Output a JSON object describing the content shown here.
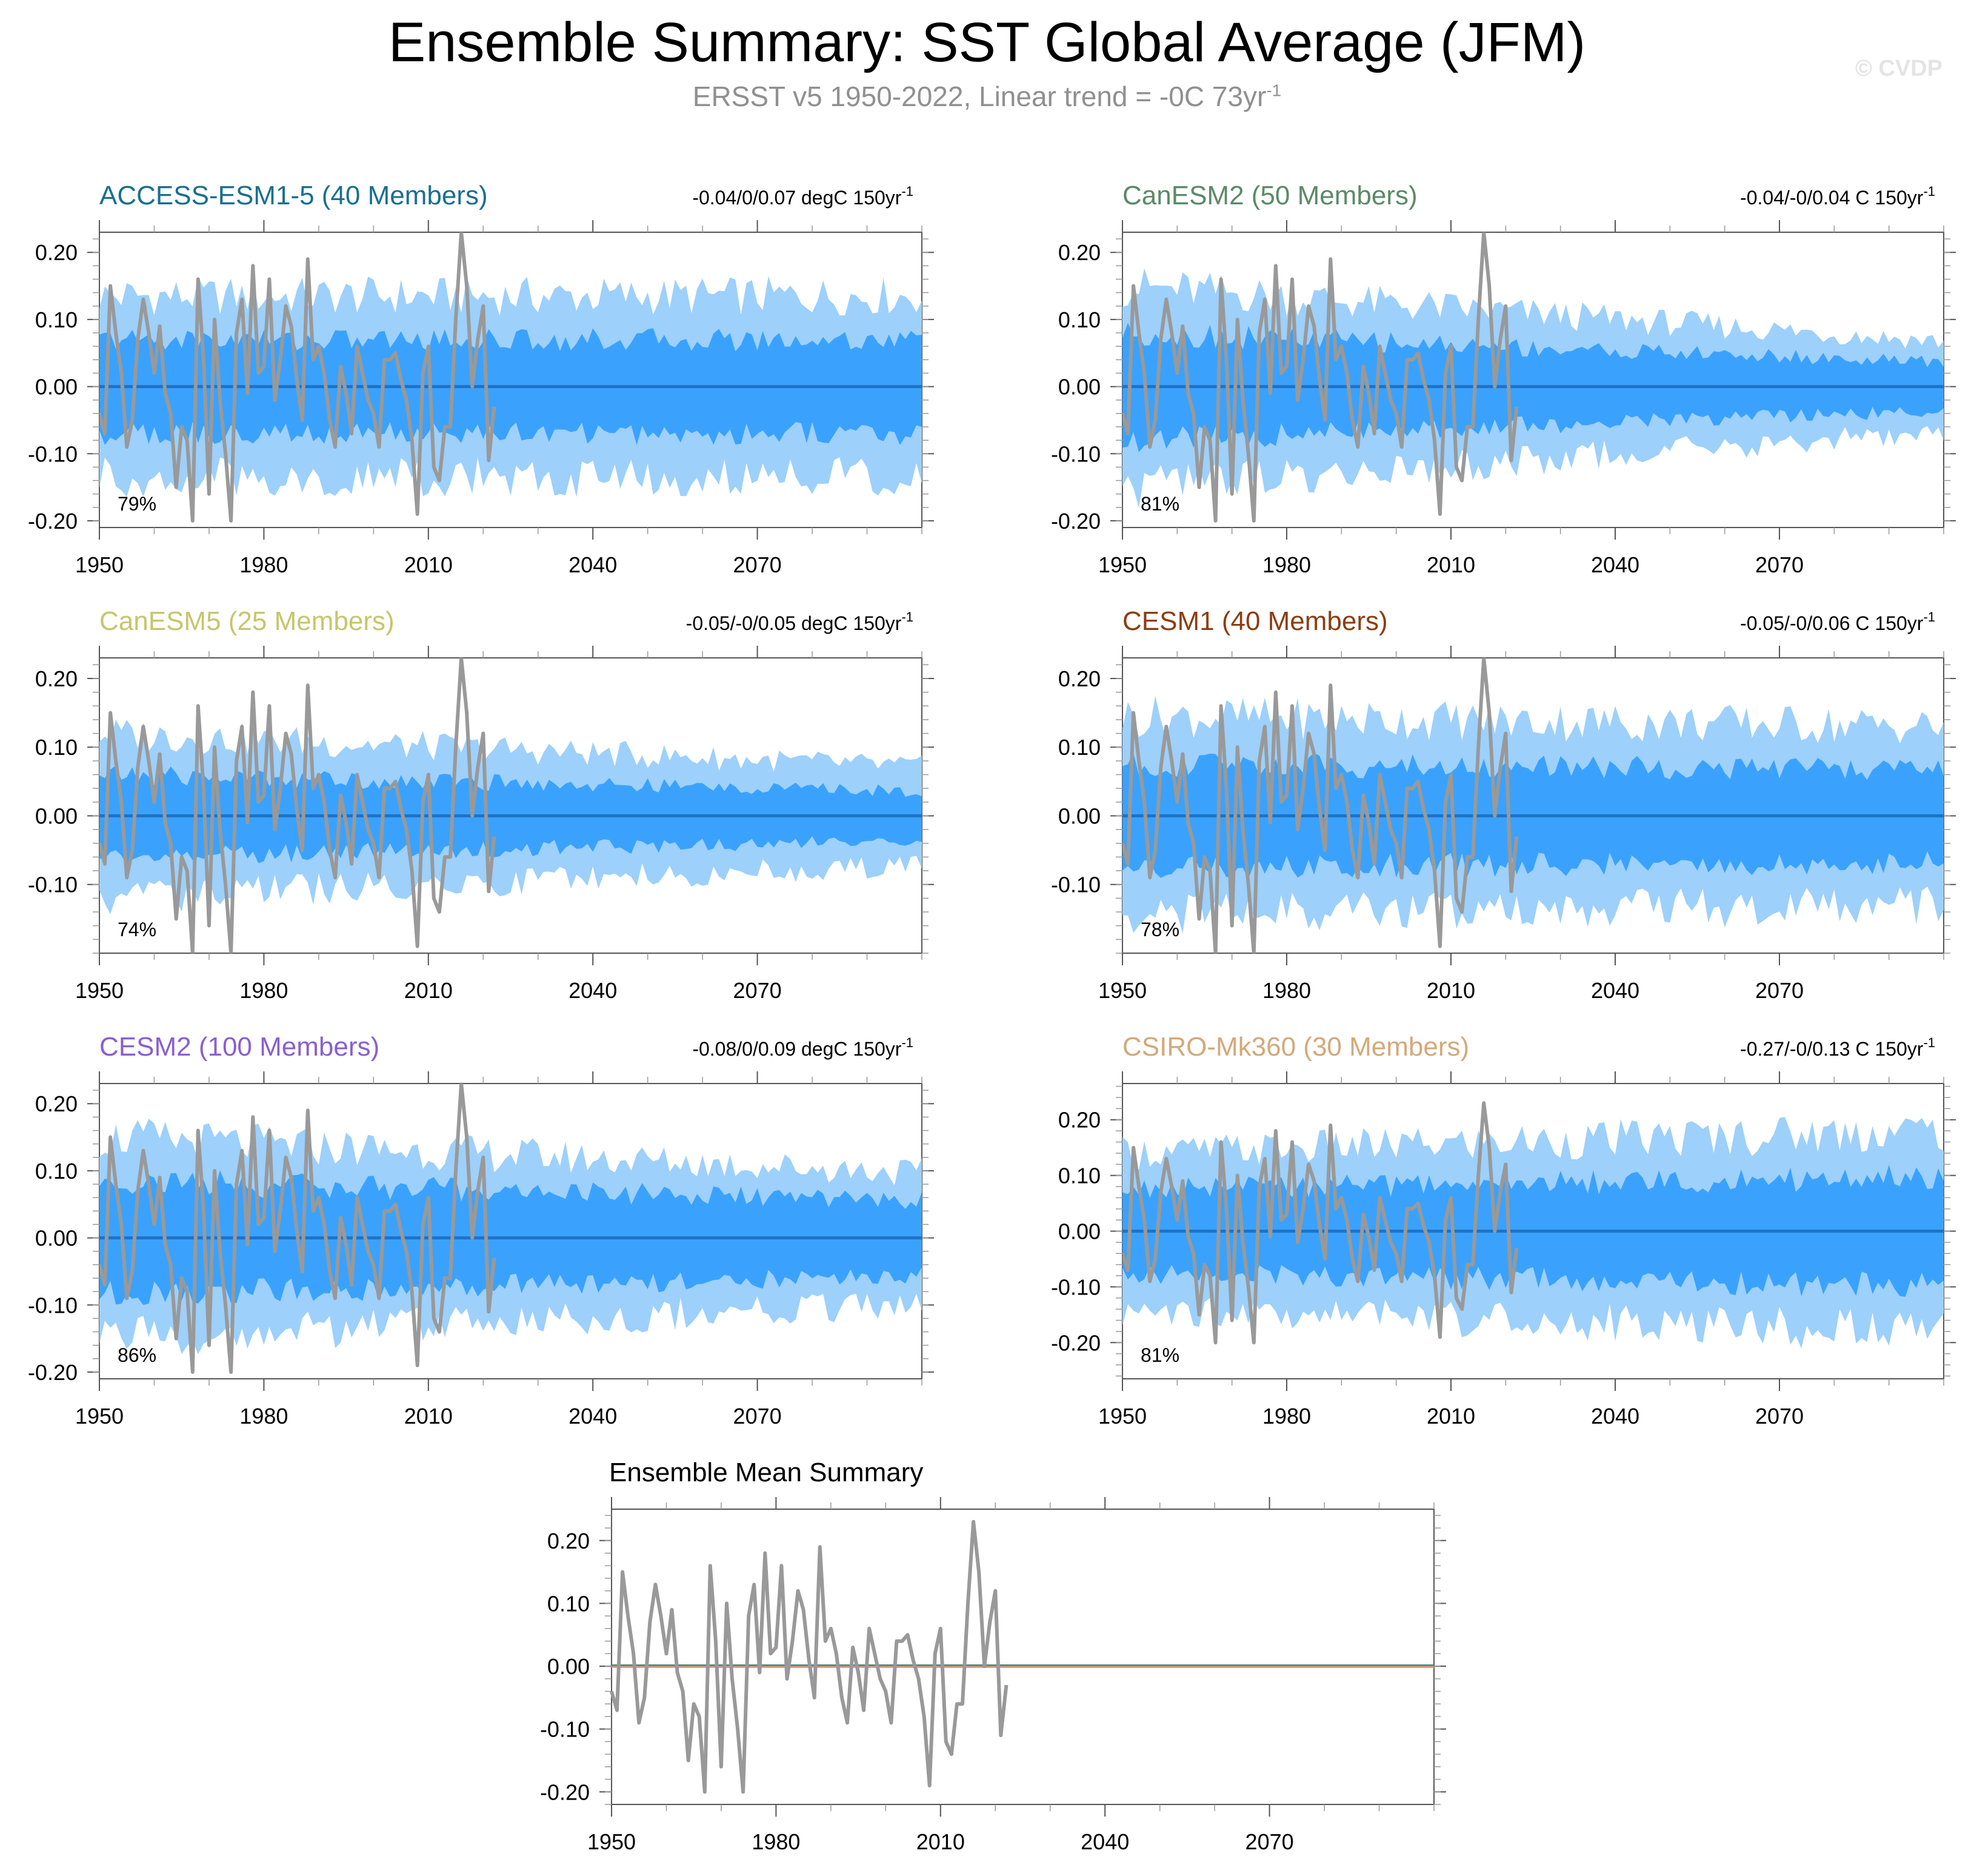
{
  "title": "Ensemble Summary: SST Global Average (JFM)",
  "subtitle": {
    "text": "ERSST v5 1950-2022, Linear trend = -0C 73yr",
    "sup": "-1"
  },
  "watermark": "© CVDP",
  "colors": {
    "band_outer": "#9dd0fb",
    "band_inner": "#3aa2fd",
    "ensemble_mean_line": "#1f72c6",
    "observations": "#999999",
    "axis": "#555555"
  },
  "chart_data": {
    "type": "line",
    "years_start": 1950,
    "years_end": 2100,
    "observations": {
      "name": "ERSST v5 1950-2022",
      "years": [
        1950,
        1951,
        1952,
        1953,
        1954,
        1955,
        1956,
        1957,
        1958,
        1959,
        1960,
        1961,
        1962,
        1963,
        1964,
        1965,
        1966,
        1967,
        1968,
        1969,
        1970,
        1971,
        1972,
        1973,
        1974,
        1975,
        1976,
        1977,
        1978,
        1979,
        1980,
        1981,
        1982,
        1983,
        1984,
        1985,
        1986,
        1987,
        1988,
        1989,
        1990,
        1991,
        1992,
        1993,
        1994,
        1995,
        1996,
        1997,
        1998,
        1999,
        2000,
        2001,
        2002,
        2003,
        2004,
        2005,
        2006,
        2007,
        2008,
        2009,
        2010,
        2011,
        2012,
        2013,
        2014,
        2015,
        2016,
        2017,
        2018,
        2019,
        2020,
        2021,
        2022
      ],
      "values": [
        -0.04,
        -0.07,
        0.15,
        0.08,
        0.02,
        -0.09,
        -0.05,
        0.07,
        0.13,
        0.08,
        0.02,
        0.09,
        -0.01,
        -0.04,
        -0.15,
        -0.06,
        -0.08,
        -0.2,
        0.16,
        0.04,
        -0.16,
        0.1,
        -0.02,
        -0.1,
        -0.2,
        0.08,
        0.13,
        -0.01,
        0.18,
        0.02,
        0.03,
        0.16,
        -0.02,
        0.04,
        0.12,
        0.09,
        0.01,
        -0.05,
        0.19,
        0.04,
        0.06,
        0.02,
        -0.05,
        -0.09,
        0.03,
        -0.01,
        -0.07,
        0.06,
        0.02,
        -0.02,
        -0.04,
        -0.09,
        0.04,
        0.04,
        0.05,
        0.01,
        -0.02,
        -0.08,
        -0.19,
        0.02,
        0.06,
        -0.12,
        -0.14,
        -0.06,
        -0.06,
        0.1,
        0.23,
        0.15,
        0.0,
        0.07,
        0.12,
        -0.11,
        -0.03
      ]
    },
    "panels": [
      {
        "model": "ACCESS-ESM1-5",
        "members": 40,
        "label": "ACCESS-ESM1-5 (40 Members)",
        "color": "#1a6f8f",
        "trend_text": "-0.04/0/0.07 degC 150yr",
        "trend_sup": "-1",
        "percent": "79%",
        "ylim": [
          -0.21,
          0.23
        ],
        "yticks": [
          -0.2,
          -0.1,
          0.0,
          0.1,
          0.2
        ],
        "ytick_labels": [
          "-0.20",
          "-0.10",
          "0.00",
          "0.10",
          "0.20"
        ],
        "band_outer": 0.135,
        "band_inner": 0.07,
        "band_trend": 0.0
      },
      {
        "model": "CanESM2",
        "members": 50,
        "label": "CanESM2 (50 Members)",
        "color": "#5b8a68",
        "trend_text": "-0.04/-0/0.04 C 150yr",
        "trend_sup": "-1",
        "percent": "81%",
        "ylim": [
          -0.21,
          0.23
        ],
        "yticks": [
          -0.2,
          -0.1,
          0.0,
          0.1,
          0.2
        ],
        "ytick_labels": [
          "-0.20",
          "-0.10",
          "0.00",
          "0.10",
          "0.20"
        ],
        "band_outer": 0.15,
        "band_inner": 0.08,
        "band_trend": -0.55
      },
      {
        "model": "CanESM5",
        "members": 25,
        "label": "CanESM5 (25 Members)",
        "color": "#c7c56d",
        "trend_text": "-0.05/-0/0.05 degC 150yr",
        "trend_sup": "-1",
        "percent": "74%",
        "ylim": [
          -0.2,
          0.23
        ],
        "yticks": [
          -0.1,
          0.0,
          0.1,
          0.2
        ],
        "ytick_labels": [
          "-0.10",
          "0.00",
          "0.10",
          "0.20"
        ],
        "band_outer": 0.12,
        "band_inner": 0.06,
        "band_trend": -0.4
      },
      {
        "model": "CESM1",
        "members": 40,
        "label": "CESM1 (40 Members)",
        "color": "#8b3e12",
        "trend_text": "-0.05/-0/0.06 C 150yr",
        "trend_sup": "-1",
        "percent": "78%",
        "ylim": [
          -0.2,
          0.23
        ],
        "yticks": [
          -0.1,
          0.0,
          0.1,
          0.2
        ],
        "ytick_labels": [
          "-0.10",
          "0.00",
          "0.10",
          "0.20"
        ],
        "band_outer": 0.145,
        "band_inner": 0.075,
        "band_trend": -0.1
      },
      {
        "model": "CESM2",
        "members": 100,
        "label": "CESM2 (100 Members)",
        "color": "#8a5fd0",
        "trend_text": "-0.08/0/0.09 degC 150yr",
        "trend_sup": "-1",
        "percent": "86%",
        "ylim": [
          -0.21,
          0.23
        ],
        "yticks": [
          -0.2,
          -0.1,
          0.0,
          0.1,
          0.2
        ],
        "ytick_labels": [
          "-0.20",
          "-0.10",
          "0.00",
          "0.10",
          "0.20"
        ],
        "band_outer": 0.15,
        "band_inner": 0.085,
        "band_trend": -0.35
      },
      {
        "model": "CSIRO-Mk360",
        "members": 30,
        "label": "CSIRO-Mk360 (30 Members)",
        "color": "#d4a97a",
        "trend_text": "-0.27/-0/0.13 C 150yr",
        "trend_sup": "-1",
        "percent": "81%",
        "ylim": [
          -0.265,
          0.265
        ],
        "yticks": [
          -0.2,
          -0.1,
          0.0,
          0.1,
          0.2
        ],
        "ytick_labels": [
          "-0.20",
          "-0.10",
          "0.00",
          "0.10",
          "0.20"
        ],
        "band_outer": 0.14,
        "band_inner": 0.075,
        "band_trend": 0.3
      }
    ],
    "summary": {
      "title": "Ensemble Mean Summary",
      "ylim": [
        -0.22,
        0.25
      ],
      "yticks": [
        -0.2,
        -0.1,
        0.0,
        0.1,
        0.2
      ],
      "ytick_labels": [
        "-0.20",
        "-0.10",
        "0.00",
        "0.10",
        "0.20"
      ],
      "ensemble_mean_colors": [
        "#1a6f8f",
        "#5b8a68",
        "#c7c56d",
        "#8b3e12",
        "#8a5fd0",
        "#d4a97a"
      ]
    },
    "xticks": [
      1950,
      1980,
      2010,
      2040,
      2070
    ],
    "xtick_labels": [
      "1950",
      "1980",
      "2010",
      "2040",
      "2070"
    ]
  }
}
